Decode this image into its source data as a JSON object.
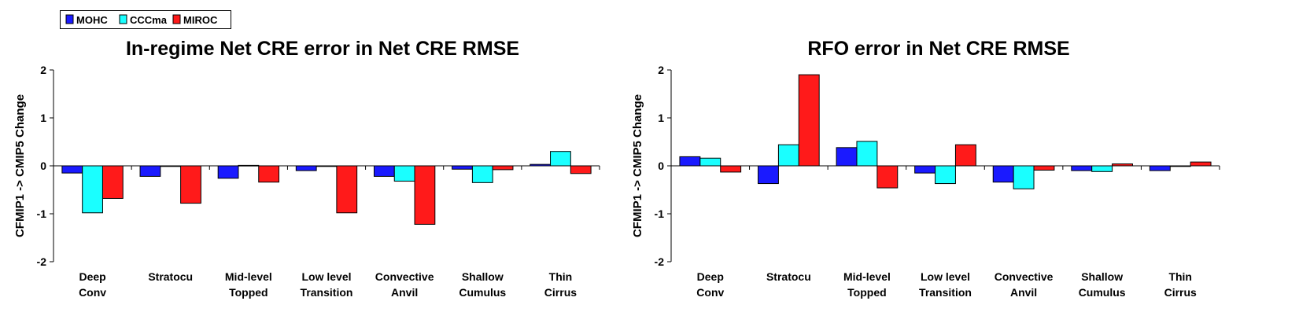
{
  "legend": {
    "items": [
      {
        "label": "MOHC",
        "color": "#1a1aff"
      },
      {
        "label": "CCCma",
        "color": "#1affff"
      },
      {
        "label": "MIROC",
        "color": "#ff1a1a"
      }
    ]
  },
  "chart_data": [
    {
      "type": "bar",
      "title": "In-regime Net CRE error in Net CRE RMSE",
      "xlabel": "",
      "ylabel": "CFMIP1 -> CMIP5 Change",
      "ylim": [
        -2,
        2
      ],
      "yticks": [
        "2",
        "1",
        "0",
        "-1",
        "-2"
      ],
      "grid": false,
      "categories": [
        [
          "Deep",
          "Conv"
        ],
        [
          "Stratocu"
        ],
        [
          "Mid-level",
          "Topped"
        ],
        [
          "Low level",
          "Transition"
        ],
        [
          "Convective",
          "Anvil"
        ],
        [
          "Shallow",
          "Cumulus"
        ],
        [
          "Thin",
          "Cirrus"
        ]
      ],
      "series": [
        {
          "name": "MOHC",
          "color": "#1a1aff",
          "values": [
            -0.15,
            -0.22,
            -0.26,
            -0.1,
            -0.22,
            -0.07,
            0.03
          ]
        },
        {
          "name": "CCCma",
          "color": "#1affff",
          "values": [
            -0.98,
            0.0,
            0.01,
            0.0,
            -0.32,
            -0.35,
            0.3
          ]
        },
        {
          "name": "MIROC",
          "color": "#ff1a1a",
          "values": [
            -0.68,
            -0.78,
            -0.34,
            -0.98,
            -1.22,
            -0.08,
            -0.16
          ]
        }
      ]
    },
    {
      "type": "bar",
      "title": "RFO error in Net CRE RMSE",
      "xlabel": "",
      "ylabel": "CFMIP1 -> CMIP5 Change",
      "ylim": [
        -2,
        2
      ],
      "yticks": [
        "2",
        "1",
        "0",
        "-1",
        "-2"
      ],
      "grid": false,
      "categories": [
        [
          "Deep",
          "Conv"
        ],
        [
          "Stratocu"
        ],
        [
          "Mid-level",
          "Topped"
        ],
        [
          "Low level",
          "Transition"
        ],
        [
          "Convective",
          "Anvil"
        ],
        [
          "Shallow",
          "Cumulus"
        ],
        [
          "Thin",
          "Cirrus"
        ]
      ],
      "series": [
        {
          "name": "MOHC",
          "color": "#1a1aff",
          "values": [
            0.19,
            -0.37,
            0.38,
            -0.15,
            -0.34,
            -0.1,
            -0.1
          ]
        },
        {
          "name": "CCCma",
          "color": "#1affff",
          "values": [
            0.16,
            0.44,
            0.51,
            -0.37,
            -0.48,
            -0.12,
            -0.01
          ]
        },
        {
          "name": "MIROC",
          "color": "#ff1a1a",
          "values": [
            -0.13,
            1.9,
            -0.46,
            0.44,
            -0.09,
            0.04,
            0.08
          ]
        }
      ]
    }
  ]
}
